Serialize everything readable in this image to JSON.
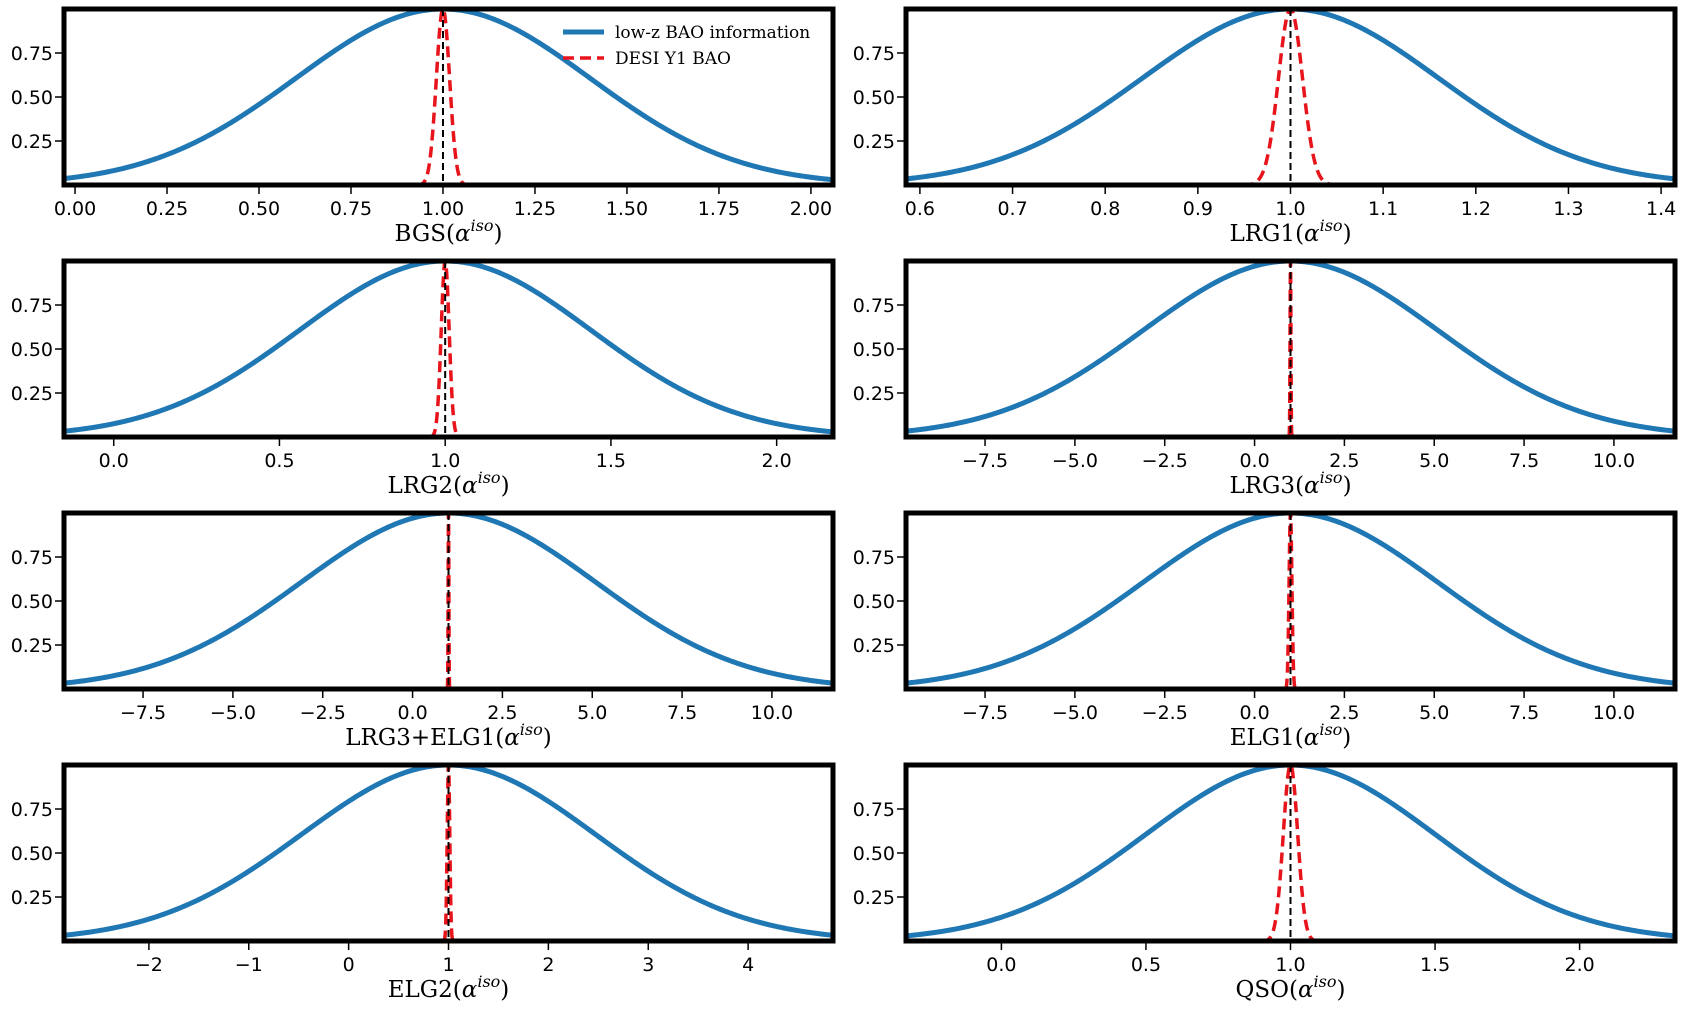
{
  "legend": {
    "entries": [
      {
        "label": "low-z BAO information",
        "color": "#1f77b4",
        "style": "solid"
      },
      {
        "label": "DESI Y1 BAO",
        "color": "#e8141c",
        "style": "dashed"
      }
    ],
    "placement": "top-right of first panel"
  },
  "colors": {
    "lowz": "#1f77b4",
    "desi": "#e8141c",
    "reference": "#000000"
  },
  "chart_data": [
    {
      "type": "line",
      "tracer": "BGS",
      "xlabel_base": "BGS",
      "xlabel_sup": "iso",
      "xlim": [
        -0.03,
        2.06
      ],
      "ylim": [
        0,
        1.0
      ],
      "xticks": [
        0.0,
        0.25,
        0.5,
        0.75,
        1.0,
        1.25,
        1.5,
        1.75,
        2.0
      ],
      "xtick_labels": [
        "0.00",
        "0.25",
        "0.50",
        "0.75",
        "1.00",
        "1.25",
        "1.50",
        "1.75",
        "2.00"
      ],
      "yticks": [
        0.25,
        0.5,
        0.75
      ],
      "ytick_labels": [
        "0.25",
        "0.50",
        "0.75"
      ],
      "reference_x": 1.0,
      "series": [
        {
          "name": "low-z BAO information",
          "mean": 1.0,
          "sigma": 0.4
        },
        {
          "name": "DESI Y1 BAO",
          "mean": 1.0,
          "sigma": 0.018
        }
      ]
    },
    {
      "type": "line",
      "tracer": "LRG1",
      "xlabel_base": "LRG1",
      "xlabel_sup": "iso",
      "xlim": [
        0.585,
        1.415
      ],
      "ylim": [
        0,
        1.0
      ],
      "xticks": [
        0.6,
        0.7,
        0.8,
        0.9,
        1.0,
        1.1,
        1.2,
        1.3,
        1.4
      ],
      "xtick_labels": [
        "0.6",
        "0.7",
        "0.8",
        "0.9",
        "1.0",
        "1.1",
        "1.2",
        "1.3",
        "1.4"
      ],
      "yticks": [
        0.25,
        0.5,
        0.75
      ],
      "ytick_labels": [
        "0.25",
        "0.50",
        "0.75"
      ],
      "reference_x": 1.0,
      "series": [
        {
          "name": "low-z BAO information",
          "mean": 1.0,
          "sigma": 0.16
        },
        {
          "name": "DESI Y1 BAO",
          "mean": 1.0,
          "sigma": 0.013
        }
      ]
    },
    {
      "type": "line",
      "tracer": "LRG2",
      "xlabel_base": "LRG2",
      "xlabel_sup": "iso",
      "xlim": [
        -0.15,
        2.17
      ],
      "ylim": [
        0,
        1.0
      ],
      "xticks": [
        0.0,
        0.5,
        1.0,
        1.5,
        2.0
      ],
      "xtick_labels": [
        "0.0",
        "0.5",
        "1.0",
        "1.5",
        "2.0"
      ],
      "yticks": [
        0.25,
        0.5,
        0.75
      ],
      "ytick_labels": [
        "0.25",
        "0.50",
        "0.75"
      ],
      "reference_x": 1.0,
      "series": [
        {
          "name": "low-z BAO information",
          "mean": 1.0,
          "sigma": 0.44
        },
        {
          "name": "DESI Y1 BAO",
          "mean": 1.0,
          "sigma": 0.012
        }
      ]
    },
    {
      "type": "line",
      "tracer": "LRG3",
      "xlabel_base": "LRG3",
      "xlabel_sup": "iso",
      "xlim": [
        -9.7,
        11.7
      ],
      "ylim": [
        0,
        1.0
      ],
      "xticks": [
        -7.5,
        -5.0,
        -2.5,
        0.0,
        2.5,
        5.0,
        7.5,
        10.0
      ],
      "xtick_labels": [
        "−7.5",
        "−5.0",
        "−2.5",
        "0.0",
        "2.5",
        "5.0",
        "7.5",
        "10.0"
      ],
      "yticks": [
        0.25,
        0.5,
        0.75
      ],
      "ytick_labels": [
        "0.25",
        "0.50",
        "0.75"
      ],
      "reference_x": 1.0,
      "series": [
        {
          "name": "low-z BAO information",
          "mean": 1.0,
          "sigma": 4.1
        },
        {
          "name": "DESI Y1 BAO",
          "mean": 1.0,
          "sigma": 0.012
        }
      ]
    },
    {
      "type": "line",
      "tracer": "LRG3+ELG1",
      "xlabel_base": "LRG3+ELG1",
      "xlabel_sup": "iso",
      "xlim": [
        -9.7,
        11.7
      ],
      "ylim": [
        0,
        1.0
      ],
      "xticks": [
        -7.5,
        -5.0,
        -2.5,
        0.0,
        2.5,
        5.0,
        7.5,
        10.0
      ],
      "xtick_labels": [
        "−7.5",
        "−5.0",
        "−2.5",
        "0.0",
        "2.5",
        "5.0",
        "7.5",
        "10.0"
      ],
      "yticks": [
        0.25,
        0.5,
        0.75
      ],
      "ytick_labels": [
        "0.25",
        "0.50",
        "0.75"
      ],
      "reference_x": 1.0,
      "series": [
        {
          "name": "low-z BAO information",
          "mean": 1.0,
          "sigma": 4.1
        },
        {
          "name": "DESI Y1 BAO",
          "mean": 1.0,
          "sigma": 0.01
        }
      ]
    },
    {
      "type": "line",
      "tracer": "ELG1",
      "xlabel_base": "ELG1",
      "xlabel_sup": "iso",
      "xlim": [
        -9.7,
        11.7
      ],
      "ylim": [
        0,
        1.0
      ],
      "xticks": [
        -7.5,
        -5.0,
        -2.5,
        0.0,
        2.5,
        5.0,
        7.5,
        10.0
      ],
      "xtick_labels": [
        "−7.5",
        "−5.0",
        "−2.5",
        "0.0",
        "2.5",
        "5.0",
        "7.5",
        "10.0"
      ],
      "yticks": [
        0.25,
        0.5,
        0.75
      ],
      "ytick_labels": [
        "0.25",
        "0.50",
        "0.75"
      ],
      "reference_x": 1.0,
      "series": [
        {
          "name": "low-z BAO information",
          "mean": 1.0,
          "sigma": 4.1
        },
        {
          "name": "DESI Y1 BAO",
          "mean": 1.0,
          "sigma": 0.04
        }
      ]
    },
    {
      "type": "line",
      "tracer": "ELG2",
      "xlabel_base": "ELG2",
      "xlabel_sup": "iso",
      "xlim": [
        -2.85,
        4.85
      ],
      "ylim": [
        0,
        1.0
      ],
      "xticks": [
        -2,
        -1,
        0,
        1,
        2,
        3,
        4
      ],
      "xtick_labels": [
        "−2",
        "−1",
        "0",
        "1",
        "2",
        "3",
        "4"
      ],
      "yticks": [
        0.25,
        0.5,
        0.75
      ],
      "ytick_labels": [
        "0.25",
        "0.50",
        "0.75"
      ],
      "reference_x": 1.0,
      "series": [
        {
          "name": "low-z BAO information",
          "mean": 1.0,
          "sigma": 1.47
        },
        {
          "name": "DESI Y1 BAO",
          "mean": 1.0,
          "sigma": 0.013
        }
      ]
    },
    {
      "type": "line",
      "tracer": "QSO",
      "xlabel_base": "QSO",
      "xlabel_sup": "iso",
      "xlim": [
        -0.33,
        2.33
      ],
      "ylim": [
        0,
        1.0
      ],
      "xticks": [
        0.0,
        0.5,
        1.0,
        1.5,
        2.0
      ],
      "xtick_labels": [
        "0.0",
        "0.5",
        "1.0",
        "1.5",
        "2.0"
      ],
      "yticks": [
        0.25,
        0.5,
        0.75
      ],
      "ytick_labels": [
        "0.25",
        "0.50",
        "0.75"
      ],
      "reference_x": 1.0,
      "series": [
        {
          "name": "low-z BAO information",
          "mean": 1.0,
          "sigma": 0.5
        },
        {
          "name": "DESI Y1 BAO",
          "mean": 1.0,
          "sigma": 0.025
        }
      ]
    }
  ]
}
